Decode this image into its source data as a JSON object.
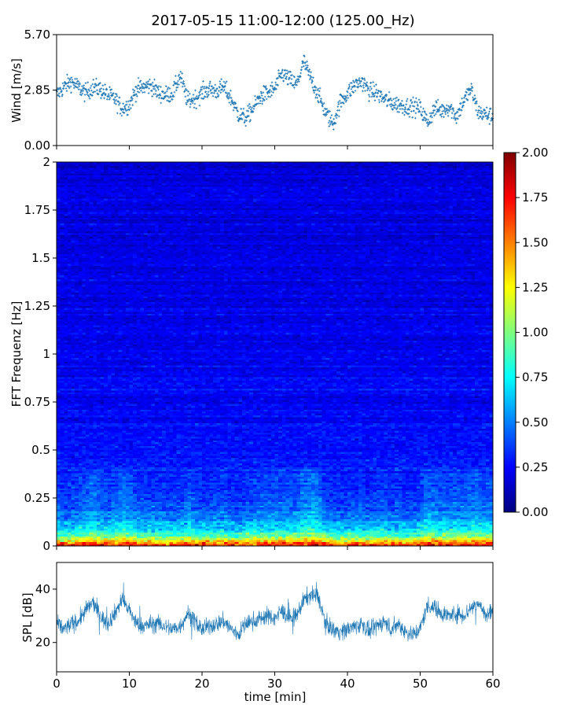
{
  "figure": {
    "title": "2017-05-15 11:00-12:00 (125.00_Hz)"
  },
  "colors": {
    "series": "#1f77b4",
    "colormap": "jet"
  },
  "chart_data": [
    {
      "type": "scatter",
      "panel": "wind",
      "ylabel": "Wind [m/s]",
      "xlim": [
        0,
        60
      ],
      "ylim": [
        0.0,
        5.7
      ],
      "yticks": [
        0.0,
        2.85,
        5.7
      ],
      "ytick_labels": [
        "0.00",
        "2.85",
        "5.70"
      ],
      "marker": "+",
      "x": [
        0,
        1,
        2,
        3,
        4,
        5,
        6,
        7,
        8,
        9,
        10,
        11,
        12,
        13,
        14,
        15,
        16,
        17,
        18,
        19,
        20,
        21,
        22,
        23,
        24,
        25,
        26,
        27,
        28,
        29,
        30,
        31,
        32,
        33,
        34,
        35,
        36,
        37,
        38,
        39,
        40,
        41,
        42,
        43,
        44,
        45,
        46,
        47,
        48,
        49,
        50,
        51,
        52,
        53,
        54,
        55,
        56,
        57,
        58,
        59,
        60
      ],
      "y": [
        2.6,
        3.0,
        3.3,
        3.0,
        2.7,
        3.0,
        2.9,
        2.6,
        2.4,
        1.9,
        2.1,
        2.9,
        3.0,
        3.1,
        2.7,
        2.6,
        2.7,
        3.6,
        2.3,
        2.4,
        2.7,
        2.9,
        2.8,
        3.0,
        2.4,
        1.6,
        1.4,
        1.9,
        2.5,
        2.7,
        2.9,
        3.7,
        3.4,
        3.1,
        4.3,
        3.4,
        2.6,
        1.7,
        1.1,
        2.2,
        2.7,
        3.1,
        3.3,
        2.8,
        2.7,
        2.4,
        2.2,
        2.1,
        2.0,
        2.0,
        1.9,
        1.2,
        1.9,
        1.8,
        2.0,
        1.5,
        2.3,
        2.9,
        1.7,
        1.6,
        1.5
      ]
    },
    {
      "type": "heatmap",
      "panel": "spectrogram",
      "ylabel": "FFT Frequenz [Hz]",
      "xlim": [
        0,
        60
      ],
      "ylim": [
        0,
        2
      ],
      "yticks": [
        0,
        0.25,
        0.5,
        0.75,
        1,
        1.25,
        1.5,
        1.75,
        2
      ],
      "ytick_labels": [
        "0",
        "0.25",
        "0.5",
        "0.75",
        "1",
        "1.25",
        "1.5",
        "1.75",
        "2"
      ],
      "colorbar": {
        "range": [
          0.0,
          2.0
        ],
        "ticks": [
          "0.00",
          "0.25",
          "0.50",
          "0.75",
          "1.00",
          "1.25",
          "1.50",
          "1.75",
          "2.00"
        ]
      },
      "mean_level_by_frequency": [
        {
          "freq": 0.0,
          "level": 1.7
        },
        {
          "freq": 0.025,
          "level": 1.2
        },
        {
          "freq": 0.05,
          "level": 0.9
        },
        {
          "freq": 0.1,
          "level": 0.65
        },
        {
          "freq": 0.15,
          "level": 0.5
        },
        {
          "freq": 0.25,
          "level": 0.38
        },
        {
          "freq": 0.5,
          "level": 0.27
        },
        {
          "freq": 1.0,
          "level": 0.22
        },
        {
          "freq": 1.5,
          "level": 0.2
        },
        {
          "freq": 2.0,
          "level": 0.18
        }
      ]
    },
    {
      "type": "line",
      "panel": "spl",
      "ylabel": "SPL [dB]",
      "xlabel": "time [min]",
      "xlim": [
        0,
        60
      ],
      "ylim": [
        9,
        50
      ],
      "yticks": [
        20,
        40
      ],
      "ytick_labels": [
        "20",
        "40"
      ],
      "xticks": [
        0,
        10,
        20,
        30,
        40,
        50,
        60
      ],
      "xtick_labels": [
        "0",
        "10",
        "20",
        "30",
        "40",
        "50",
        "60"
      ],
      "x": [
        0,
        1,
        2,
        3,
        4,
        5,
        6,
        7,
        8,
        9,
        10,
        11,
        12,
        13,
        14,
        15,
        16,
        17,
        18,
        19,
        20,
        21,
        22,
        23,
        24,
        25,
        26,
        27,
        28,
        29,
        30,
        31,
        32,
        33,
        34,
        35,
        36,
        37,
        38,
        39,
        40,
        41,
        42,
        43,
        44,
        45,
        46,
        47,
        48,
        49,
        50,
        51,
        52,
        53,
        54,
        55,
        56,
        57,
        58,
        59,
        60
      ],
      "y": [
        27,
        25,
        27,
        28,
        32,
        35,
        30,
        27,
        31,
        36,
        32,
        27,
        26,
        27,
        27,
        26,
        25,
        26,
        31,
        28,
        25,
        26,
        27,
        28,
        25,
        23,
        27,
        28,
        29,
        30,
        29,
        32,
        29,
        30,
        36,
        38,
        37,
        27,
        25,
        24,
        25,
        26,
        27,
        24,
        26,
        28,
        25,
        27,
        24,
        23,
        25,
        34,
        33,
        31,
        30,
        31,
        30,
        33,
        35,
        30,
        32
      ]
    }
  ]
}
